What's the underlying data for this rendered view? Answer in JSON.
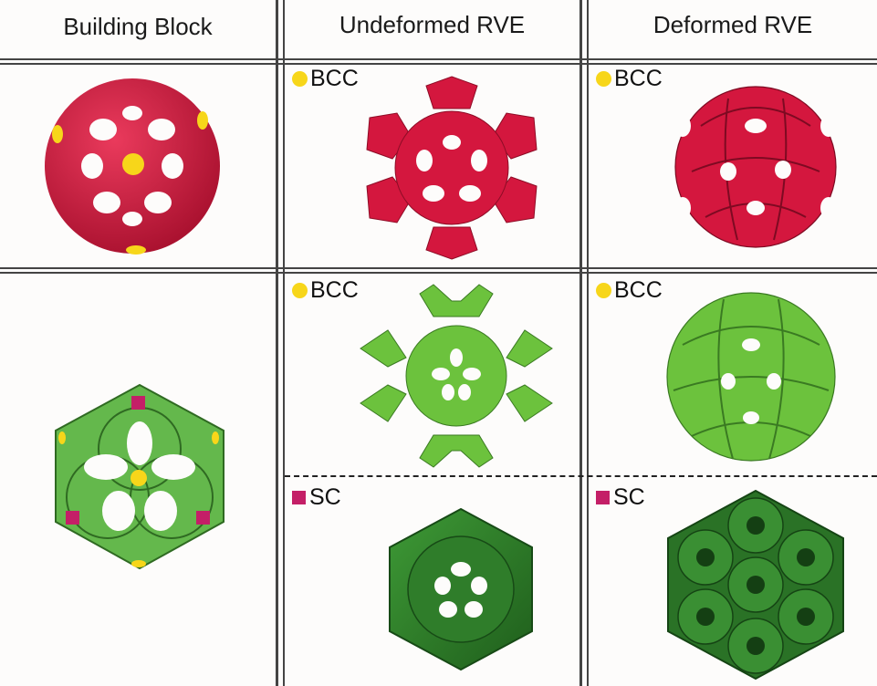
{
  "headers": {
    "col1": "Building Block",
    "col2": "Undeformed RVE",
    "col3": "Deformed RVE"
  },
  "labels": {
    "bcc": "BCC",
    "sc": "SC"
  },
  "colors": {
    "red": "#d4173e",
    "green_light": "#6cc23d",
    "green_dark": "#2e7d2a",
    "yellow_marker": "#f7d61a",
    "magenta_marker": "#c41f67"
  }
}
